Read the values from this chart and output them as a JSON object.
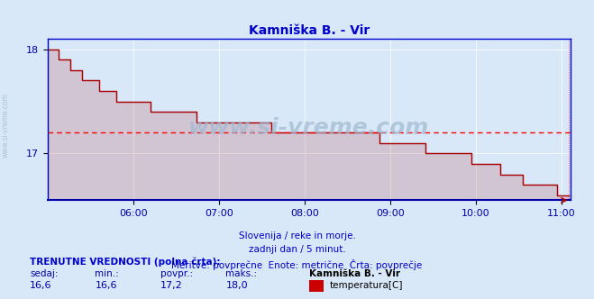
{
  "title": "Kamniška B. - Vir",
  "title_color": "#0000cc",
  "bg_color": "#d8e8f8",
  "plot_bg_color": "#d8e8f8",
  "line_color": "#aa0000",
  "avg_line_color": "#ff0000",
  "avg_line_value": 17.2,
  "axis_color": "#0000cc",
  "tick_color": "#0000aa",
  "grid_color": "#ffffff",
  "ylim": [
    16.55,
    18.1
  ],
  "yticks": [
    17.0,
    18.0
  ],
  "xlim_hours": [
    5.0,
    11.1
  ],
  "xticks_hours": [
    6,
    7,
    8,
    9,
    10,
    11
  ],
  "xtick_labels": [
    "06:00",
    "07:00",
    "08:00",
    "09:00",
    "10:00",
    "11:00"
  ],
  "xlabel": "Slovenija / reke in morje.\nzadnji dan / 5 minut.\nMeritve: povprečne  Enote: metrične  Črta: povprečje",
  "watermark": "www.si-vreme.com",
  "watermark_color": "#a0b8d0",
  "side_label": "www.si-vreme.com",
  "legend_label": "temperatura[C]",
  "legend_color": "#cc0000",
  "stats_label": "TRENUTNE VREDNOSTI (polna črta):",
  "stats": {
    "sedaj": "16,6",
    "min": "16,6",
    "povpr": "17,2",
    "maks": "18,0",
    "station": "Kamniška B. - Vir"
  },
  "temperature_data": [
    18.0,
    18.0,
    17.9,
    17.9,
    17.8,
    17.8,
    17.7,
    17.7,
    17.7,
    17.6,
    17.6,
    17.6,
    17.5,
    17.5,
    17.5,
    17.5,
    17.5,
    17.5,
    17.4,
    17.4,
    17.4,
    17.4,
    17.4,
    17.4,
    17.4,
    17.4,
    17.3,
    17.3,
    17.3,
    17.3,
    17.3,
    17.3,
    17.3,
    17.3,
    17.3,
    17.3,
    17.3,
    17.3,
    17.3,
    17.2,
    17.2,
    17.2,
    17.2,
    17.2,
    17.2,
    17.2,
    17.2,
    17.2,
    17.2,
    17.2,
    17.2,
    17.2,
    17.2,
    17.2,
    17.2,
    17.2,
    17.2,
    17.2,
    17.1,
    17.1,
    17.1,
    17.1,
    17.1,
    17.1,
    17.1,
    17.1,
    17.0,
    17.0,
    17.0,
    17.0,
    17.0,
    17.0,
    17.0,
    17.0,
    16.9,
    16.9,
    16.9,
    16.9,
    16.9,
    16.8,
    16.8,
    16.8,
    16.8,
    16.7,
    16.7,
    16.7,
    16.7,
    16.7,
    16.7,
    16.6,
    16.6,
    16.6
  ],
  "n_points": 92,
  "time_start_hours": 5.0,
  "time_end_hours": 11.083
}
